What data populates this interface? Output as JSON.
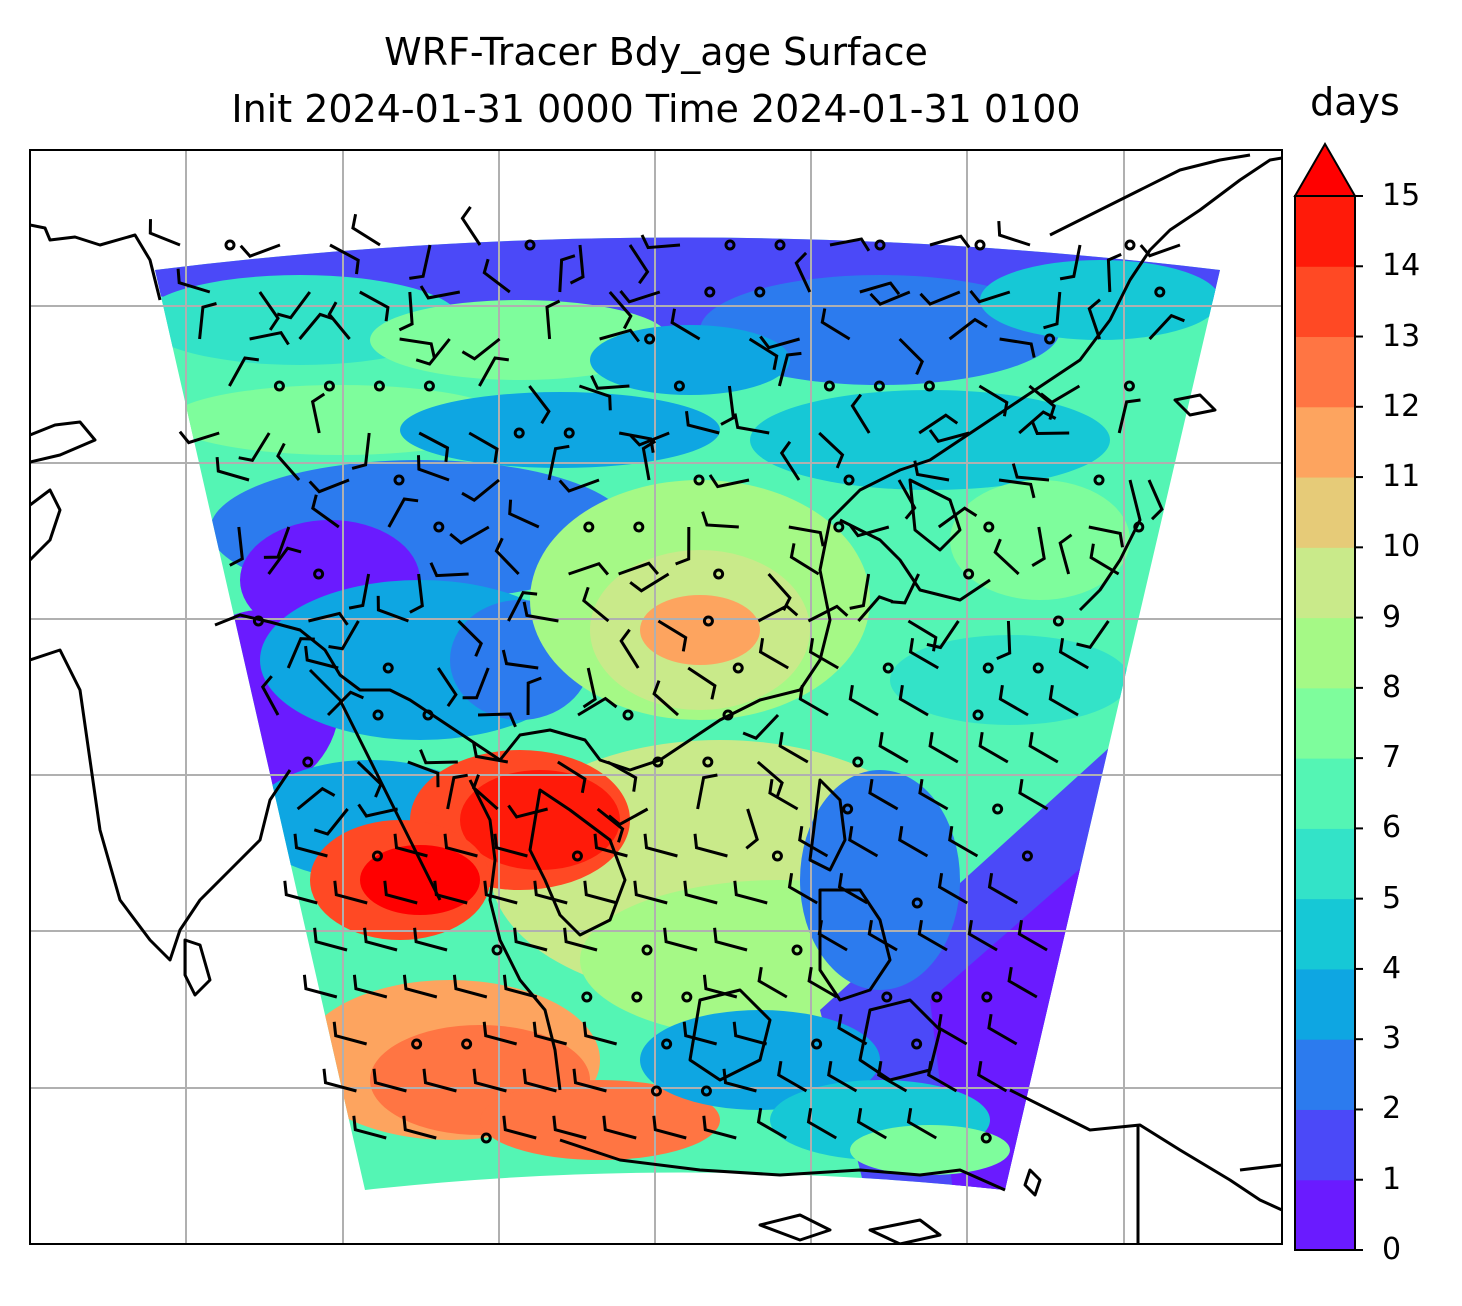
{
  "title_line1": "WRF-Tracer Bdy_age Surface",
  "title_line2": "Init 2024-01-31 0000 Time 2024-01-31 0100",
  "colorbar": {
    "unit": "days",
    "ticks": [
      "0",
      "1",
      "2",
      "3",
      "4",
      "5",
      "6",
      "7",
      "8",
      "9",
      "10",
      "11",
      "12",
      "13",
      "14",
      "15"
    ],
    "extend": "max",
    "colors": [
      "#6a1bff",
      "#4b49f8",
      "#2c7bee",
      "#0ea6e2",
      "#16c8d6",
      "#33e3c8",
      "#54f5b4",
      "#7efd9c",
      "#a5f986",
      "#c9ea8a",
      "#e6cb78",
      "#fda45f",
      "#ff7543",
      "#ff4924",
      "#ff1a09",
      "#ff0000"
    ]
  },
  "map": {
    "gridlines": true,
    "field": "Bdy_age",
    "overlays": [
      "wind barbs",
      "coastlines"
    ]
  }
}
